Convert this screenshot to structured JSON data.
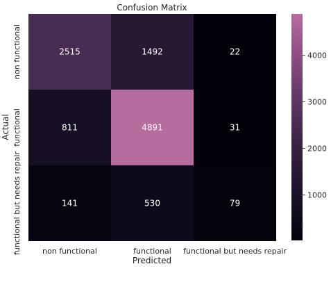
{
  "chart_data": {
    "type": "heatmap",
    "title": "Confusion Matrix",
    "xlabel": "Predicted",
    "ylabel": "Actual",
    "x_categories": [
      "non functional",
      "functional",
      "functional but needs repair"
    ],
    "y_categories": [
      "non functional",
      "functional",
      "functional but needs repair"
    ],
    "values": [
      [
        2515,
        1492,
        22
      ],
      [
        811,
        4891,
        31
      ],
      [
        141,
        530,
        79
      ]
    ],
    "colorbar": {
      "min": 22,
      "max": 4891,
      "ticks": [
        1000,
        2000,
        3000,
        4000
      ],
      "colors": [
        "#03020a",
        "#1a1128",
        "#34213f",
        "#5a3461",
        "#8a4b7f",
        "#b56d9d"
      ]
    }
  }
}
